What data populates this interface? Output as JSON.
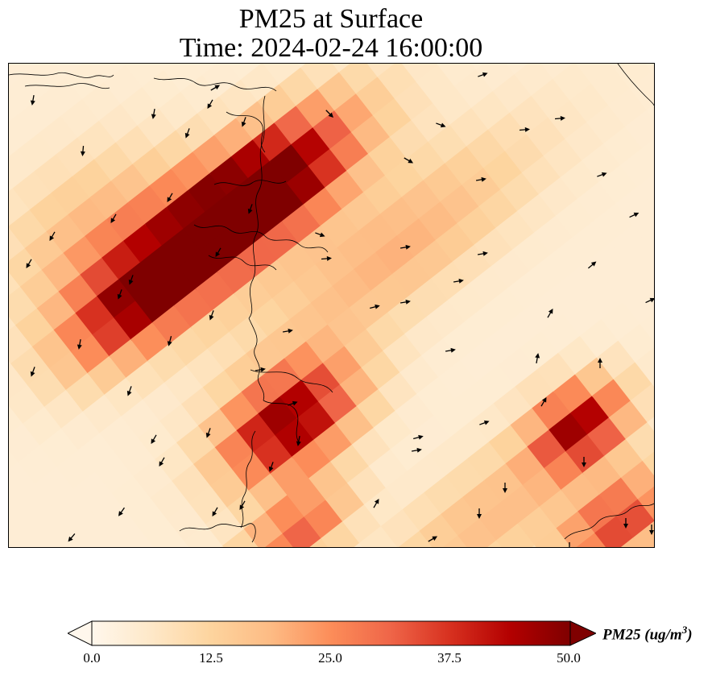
{
  "title": {
    "line1": "PM25 at Surface",
    "line2": "Time: 2024-02-24 16:00:00"
  },
  "colorbar": {
    "label_prefix": "PM25 (ug/m",
    "label_exp": "3",
    "label_suffix": ")",
    "ticks": [
      "0.0",
      "12.5",
      "25.0",
      "37.5",
      "50.0"
    ],
    "min": 0,
    "max": 50,
    "extend": "both",
    "colormap": "OrRd"
  },
  "colors": {
    "scale": [
      "#fff7ec",
      "#fee8c8",
      "#fdd49e",
      "#fdbb84",
      "#fc8d59",
      "#ef6548",
      "#d7301f",
      "#b30000",
      "#7f0000"
    ],
    "coastline": "#000000",
    "wind_vector": "#000000"
  },
  "map": {
    "field": "PM25 concentration, surface level",
    "overlays": [
      "coastline",
      "wind-vectors"
    ]
  }
}
